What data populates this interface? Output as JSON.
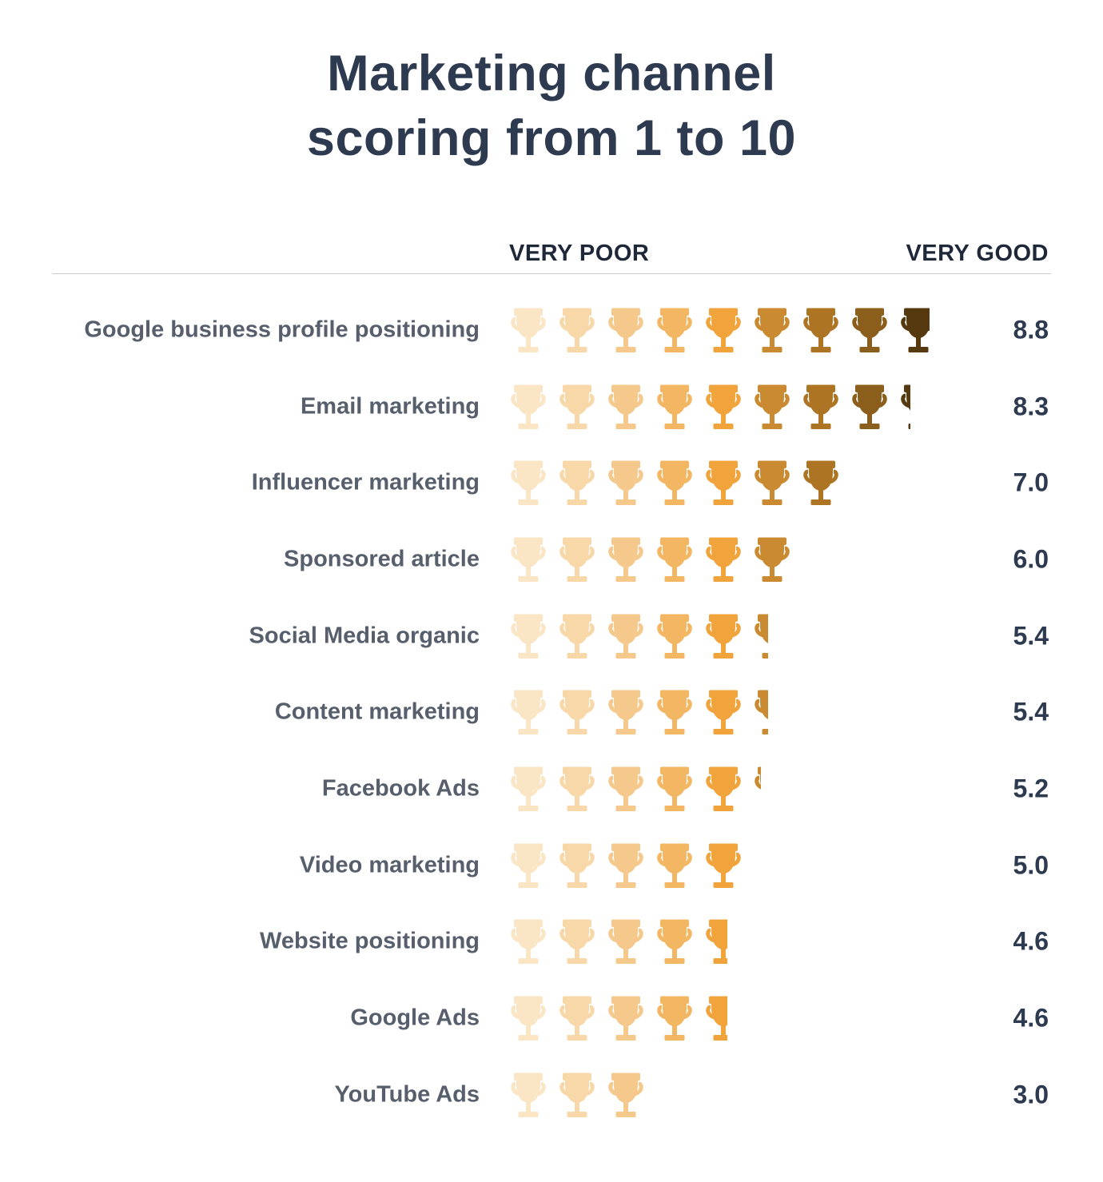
{
  "title": {
    "line1": "Marketing channel",
    "line2": "scoring from 1 to 10"
  },
  "header": {
    "left_label": "VERY POOR",
    "right_label": "VERY GOOD"
  },
  "rows": [
    {
      "label": "Google business profile positioning",
      "score": "8.8"
    },
    {
      "label": "Email marketing",
      "score": "8.3"
    },
    {
      "label": "Influencer marketing",
      "score": "7.0"
    },
    {
      "label": "Sponsored article",
      "score": "6.0"
    },
    {
      "label": "Social Media organic",
      "score": "5.4"
    },
    {
      "label": "Content marketing",
      "score": "5.4"
    },
    {
      "label": "Facebook Ads",
      "score": "5.2"
    },
    {
      "label": "Video marketing",
      "score": "5.0"
    },
    {
      "label": "Website positioning",
      "score": "4.6"
    },
    {
      "label": "Google Ads",
      "score": "4.6"
    },
    {
      "label": "YouTube Ads",
      "score": "3.0"
    }
  ],
  "colors": {
    "background": "#FFFFFF",
    "title_text": "#2D3A50",
    "header_label_text": "#1E2838",
    "row_label_text": "#575F6D",
    "score_text": "#2D3A50",
    "divider": "#CCCCCC",
    "trophy_palette": [
      "#FAE5C5",
      "#F8D8A8",
      "#F5C88B",
      "#F3B663",
      "#F2A43C",
      "#C98A31",
      "#AD7423",
      "#8C5E1B",
      "#56390F"
    ]
  },
  "icons": {
    "rating_icon": "trophy-icon"
  },
  "chart_data": {
    "type": "bar",
    "subtype": "pictogram-rating",
    "orientation": "horizontal",
    "title": "Marketing channel scoring from 1 to 10",
    "categories": [
      "Google business profile positioning",
      "Email marketing",
      "Influencer marketing",
      "Sponsored article",
      "Social Media organic",
      "Content marketing",
      "Facebook Ads",
      "Video marketing",
      "Website positioning",
      "Google Ads",
      "YouTube Ads"
    ],
    "values": [
      8.8,
      8.3,
      7.0,
      6.0,
      5.4,
      5.4,
      5.2,
      5.0,
      4.6,
      4.6,
      3.0
    ],
    "value_labels": [
      "8.8",
      "8.3",
      "7.0",
      "6.0",
      "5.4",
      "5.4",
      "5.2",
      "5.0",
      "4.6",
      "4.6",
      "3.0"
    ],
    "xlabel": "",
    "ylabel": "",
    "scale": {
      "min": 1,
      "max": 10,
      "min_label": "VERY POOR",
      "max_label": "VERY GOOD",
      "icon": "trophy",
      "points_per_icon": 1
    },
    "grid": false,
    "legend_position": "none",
    "icon_color_gradient": [
      "#FAE5C5",
      "#F8D8A8",
      "#F5C88B",
      "#F3B663",
      "#F2A43C",
      "#C98A31",
      "#AD7423",
      "#8C5E1B",
      "#56390F"
    ]
  }
}
